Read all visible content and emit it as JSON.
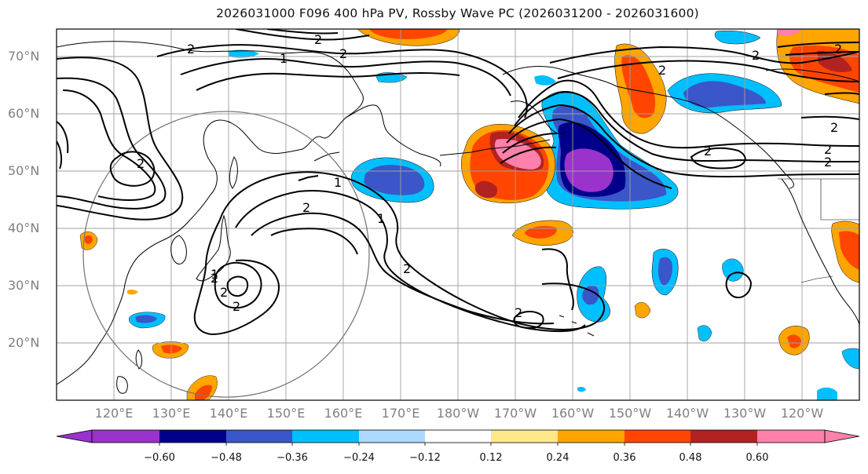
{
  "title": "2026031000 F096 400 hPa PV, Rossby Wave PC (2026031200 - 2026031600)",
  "latitude_labels": [
    "70°N",
    "60°N",
    "50°N",
    "40°N",
    "30°N",
    "20°N"
  ],
  "longitude_labels": [
    "120°E",
    "130°E",
    "140°E",
    "150°E",
    "160°E",
    "170°E",
    "180°W",
    "170°W",
    "160°W",
    "150°W",
    "140°W",
    "130°W",
    "120°W"
  ],
  "colorbar": {
    "ticks": [
      "−0.60",
      "−0.48",
      "−0.36",
      "−0.24",
      "−0.12",
      "0.12",
      "0.24",
      "0.36",
      "0.48",
      "0.60"
    ],
    "colors": [
      "#9933cc",
      "#00008b",
      "#3a56c8",
      "#00bfff",
      "#add8ff",
      "#ffffff",
      "#ffe88a",
      "#ffa500",
      "#ff4500",
      "#b22222",
      "#ff80aa"
    ]
  },
  "contour_labels": [
    "2",
    "2",
    "1",
    "2",
    "2",
    "1",
    "2",
    "1",
    "2",
    "2",
    "2",
    "1",
    "2",
    "2",
    "2",
    "2",
    "2",
    "2",
    "2",
    "2",
    "2"
  ],
  "map_colors": {
    "negative_strong": "#9933cc",
    "negative_mid": "#3a56c8",
    "negative_weak": "#00bfff",
    "positive_weak": "#ffa500",
    "positive_mid": "#ff4500",
    "positive_strong": "#ff80aa",
    "contour": "#000000",
    "grid": "#a0a0a0"
  }
}
